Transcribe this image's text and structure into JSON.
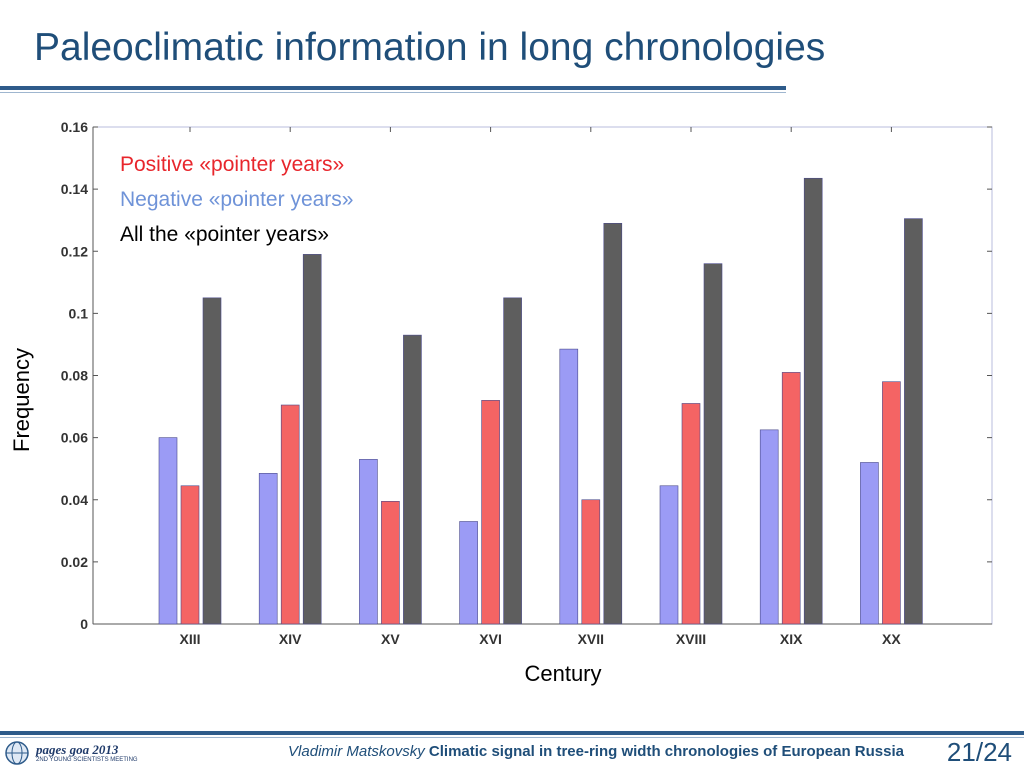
{
  "slide": {
    "title": "Paleoclimatic information in long chronologies"
  },
  "footer": {
    "logo_text": "pages goa 2013",
    "logo_subtext": "2ND YOUNG SCIENTISTS MEETING",
    "author": "Vladimir Matskovsky",
    "talk_title": "Climatic signal in tree-ring width chronologies of European Russia",
    "page": "21/24"
  },
  "colors": {
    "negative": "#9b9bf5",
    "positive": "#f46464",
    "all": "#5e5e5e",
    "positive_text": "#e8262c",
    "negative_text": "#6f93d8",
    "title": "#1f4e79"
  },
  "chart_data": {
    "type": "bar",
    "xlabel": "Century",
    "ylabel": "Frequency",
    "ylim": [
      0,
      0.16
    ],
    "yticks": [
      0,
      0.02,
      0.04,
      0.06,
      0.08,
      0.1,
      0.12,
      0.14,
      0.16
    ],
    "ytick_labels": [
      "0",
      "0.02",
      "0.04",
      "0.06",
      "0.08",
      "0.1",
      "0.12",
      "0.14",
      "0.16"
    ],
    "categories": [
      "XIII",
      "XIV",
      "XV",
      "XVI",
      "XVII",
      "XVIII",
      "XIX",
      "XX"
    ],
    "legend_position": "top-left",
    "grid": false,
    "series": [
      {
        "name": "Negative «pointer years»",
        "color": "#9b9bf5",
        "values": [
          0.06,
          0.0485,
          0.053,
          0.033,
          0.0885,
          0.0445,
          0.0625,
          0.052
        ]
      },
      {
        "name": "Positive «pointer years»",
        "color": "#f46464",
        "values": [
          0.0445,
          0.0705,
          0.0395,
          0.072,
          0.04,
          0.071,
          0.081,
          0.078
        ]
      },
      {
        "name": "All the «pointer years»",
        "color": "#5e5e5e",
        "values": [
          0.105,
          0.119,
          0.093,
          0.105,
          0.129,
          0.116,
          0.1435,
          0.1305
        ]
      }
    ],
    "legend_order": [
      "Positive «pointer years»",
      "Negative «pointer years»",
      "All the «pointer years»"
    ]
  }
}
